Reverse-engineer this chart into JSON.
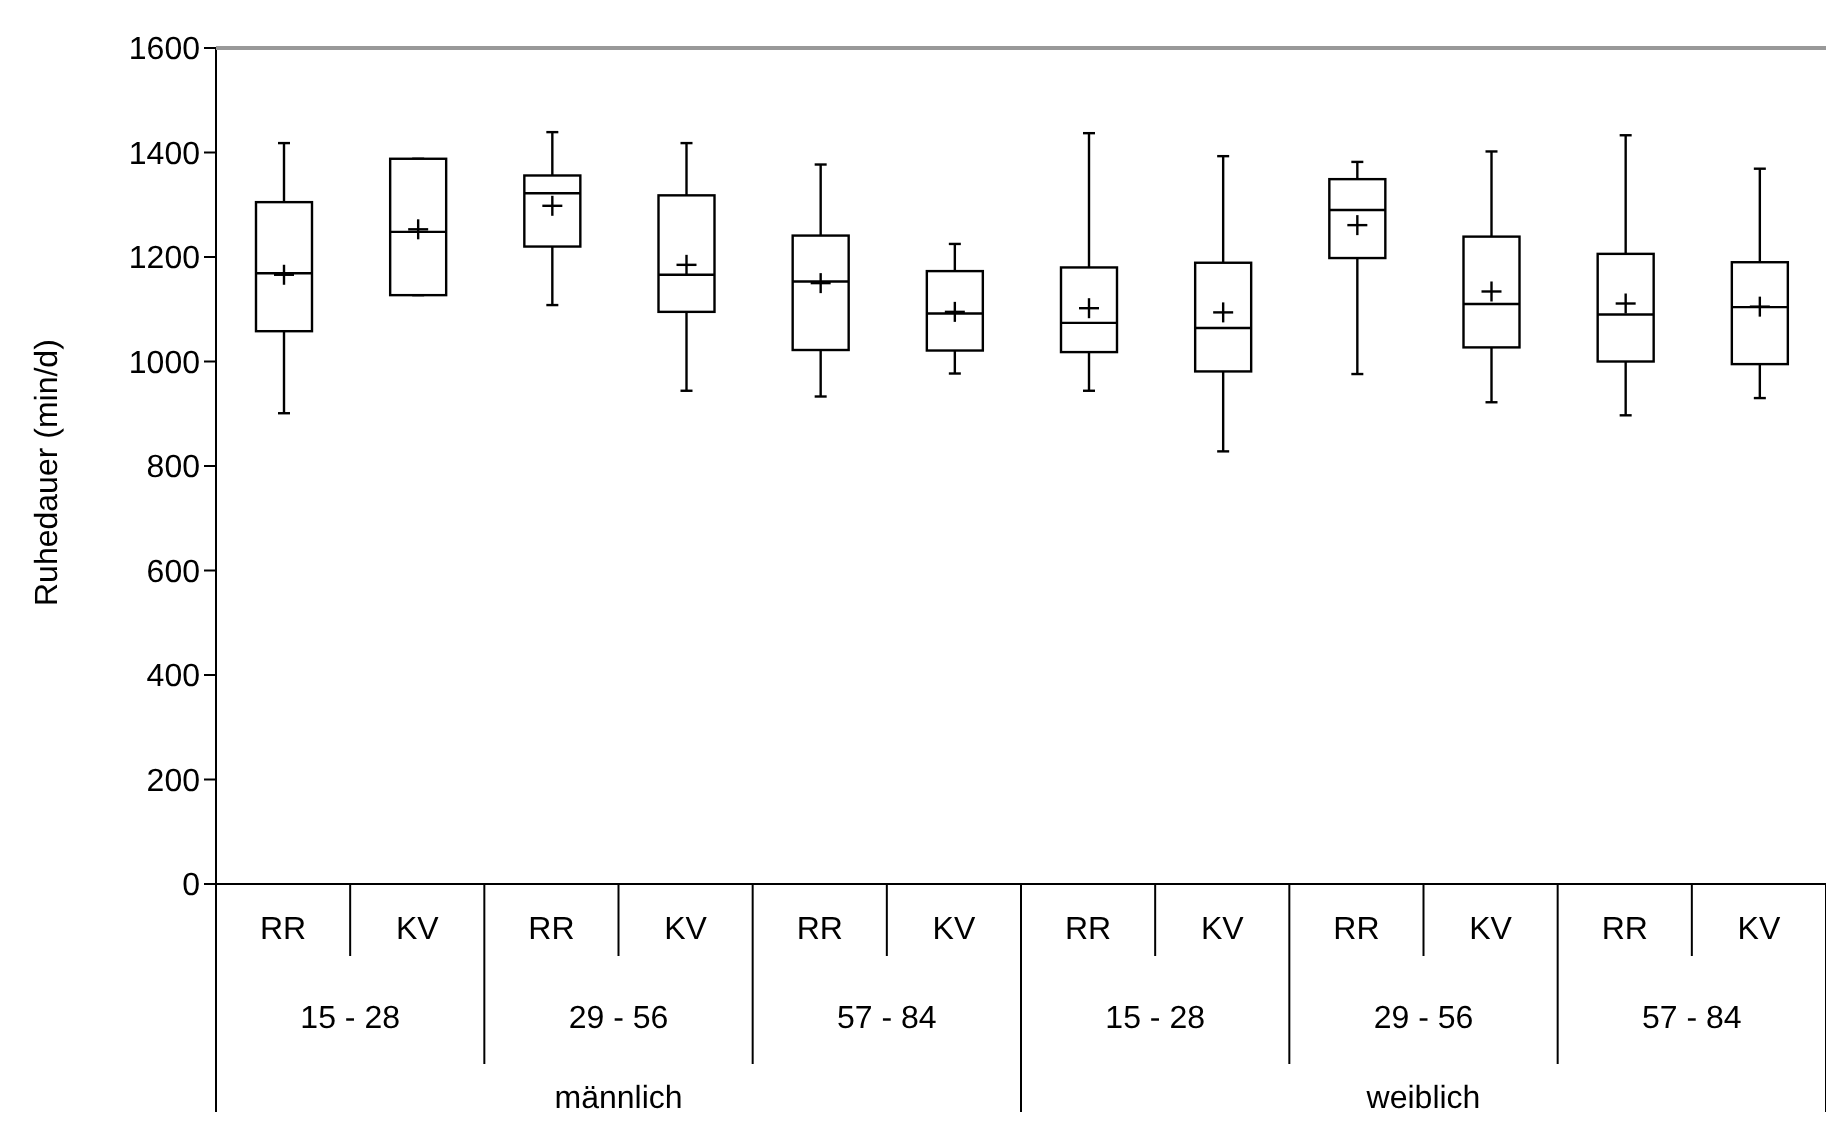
{
  "chart_data": {
    "type": "box",
    "ylabel": "Ruhedauer (min/d)",
    "categories": [
      "RR",
      "KV",
      "RR",
      "KV",
      "RR",
      "KV",
      "RR",
      "KV",
      "RR",
      "KV",
      "RR",
      "KV"
    ],
    "annotations": [
      "15 - 28",
      "29 - 56",
      "57 - 84",
      "15 - 28",
      "29 - 56",
      "57 - 84",
      "männlich",
      "weiblich"
    ],
    "boxes": [
      {
        "low": 901,
        "q1": 1058,
        "median": 1169,
        "q3": 1305,
        "high": 1418,
        "mean": 1166
      },
      {
        "low": 1127,
        "q1": 1127,
        "median": 1248,
        "q3": 1388,
        "high": 1388,
        "mean": 1253
      },
      {
        "low": 1108,
        "q1": 1220,
        "median": 1322,
        "q3": 1356,
        "high": 1439,
        "mean": 1298
      },
      {
        "low": 944,
        "q1": 1095,
        "median": 1166,
        "q3": 1318,
        "high": 1418,
        "mean": 1185
      },
      {
        "low": 933,
        "q1": 1022,
        "median": 1153,
        "q3": 1241,
        "high": 1377,
        "mean": 1150
      },
      {
        "low": 977,
        "q1": 1021,
        "median": 1092,
        "q3": 1173,
        "high": 1225,
        "mean": 1095
      },
      {
        "low": 944,
        "q1": 1018,
        "median": 1074,
        "q3": 1180,
        "high": 1437,
        "mean": 1102
      },
      {
        "low": 828,
        "q1": 981,
        "median": 1064,
        "q3": 1189,
        "high": 1393,
        "mean": 1094
      },
      {
        "low": 976,
        "q1": 1198,
        "median": 1290,
        "q3": 1349,
        "high": 1382,
        "mean": 1261
      },
      {
        "low": 922,
        "q1": 1027,
        "median": 1110,
        "q3": 1239,
        "high": 1402,
        "mean": 1134
      },
      {
        "low": 897,
        "q1": 1000,
        "median": 1090,
        "q3": 1206,
        "high": 1433,
        "mean": 1111
      },
      {
        "low": 930,
        "q1": 995,
        "median": 1104,
        "q3": 1190,
        "high": 1369,
        "mean": 1105
      }
    ],
    "ylim": [
      0,
      1600
    ],
    "yticks": [
      0,
      200,
      400,
      600,
      800,
      1000,
      1200,
      1400,
      1600
    ],
    "grid": false,
    "legend": false
  }
}
